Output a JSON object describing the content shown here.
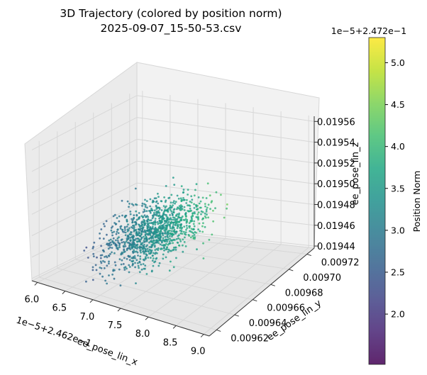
{
  "chart_data": {
    "type": "scatter",
    "title": "3D Trajectory (colored by position norm)",
    "subtitle": "2025-09-07_15-50-53.csv",
    "projection": "3d",
    "grid": true,
    "x_axis": {
      "label": "ee_pose_lin_x",
      "offset_text": "1e−5+2.462e−1",
      "ticks": [
        "6.0",
        "6.5",
        "7.0",
        "7.5",
        "8.0",
        "8.5",
        "9.0"
      ],
      "range": [
        5.9,
        9.1
      ]
    },
    "y_axis": {
      "label": "ee_pose_lin_y",
      "ticks": [
        "0.00962",
        "0.00964",
        "0.00966",
        "0.00968",
        "0.00970",
        "0.00972"
      ],
      "range": [
        0.009612,
        0.009728
      ]
    },
    "z_axis": {
      "label": "ee_pose_lin_z",
      "ticks": [
        "0.01944",
        "0.01946",
        "0.01948",
        "0.01950",
        "0.01952",
        "0.01954",
        "0.01956"
      ],
      "range": [
        0.019438,
        0.019565
      ]
    },
    "colorbar": {
      "label": "Position Norm",
      "offset_text": "1e−5+2.472e−1",
      "ticks": [
        "2.0",
        "2.5",
        "3.0",
        "3.5",
        "4.0",
        "4.5",
        "5.0"
      ],
      "range": [
        1.4,
        5.3
      ],
      "colormap": "viridis",
      "placement": "right"
    },
    "colors": {
      "pane": "#f2f2f2",
      "grid": "#d7d7d7",
      "axis": "#333333"
    },
    "series": [
      {
        "marker_alpha": 0.8,
        "point_count": 1200
      }
    ]
  }
}
